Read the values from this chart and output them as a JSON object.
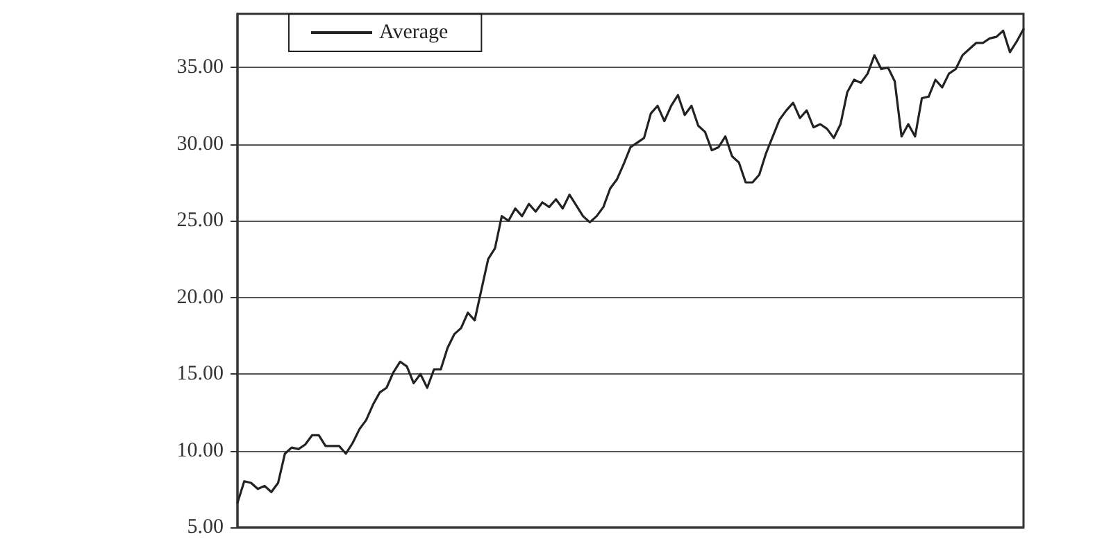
{
  "chart_data": {
    "type": "line",
    "categories": [
      null,
      null,
      null,
      null,
      null,
      null,
      null,
      null,
      null,
      null,
      null,
      null,
      null,
      null,
      null,
      null,
      null,
      null,
      null,
      null,
      null,
      null,
      null,
      null,
      null,
      null,
      null,
      null,
      null,
      null,
      null,
      null,
      null,
      null,
      null,
      null,
      null,
      null,
      null,
      null,
      null,
      null,
      null,
      null,
      null,
      null,
      null,
      null,
      null,
      null,
      null,
      null,
      null,
      null,
      null,
      null,
      null,
      null,
      null,
      null,
      null,
      null,
      null,
      null,
      null,
      null,
      null,
      null,
      null,
      null,
      null,
      null,
      null,
      null,
      null,
      null,
      null,
      null,
      null,
      null,
      null,
      null,
      null,
      null,
      null,
      null,
      null,
      null,
      null,
      null,
      null,
      null,
      null,
      null,
      null,
      null,
      null,
      null,
      null,
      null,
      null,
      null,
      null,
      null,
      null,
      null,
      null,
      null,
      null,
      null,
      null,
      null,
      null,
      null,
      null,
      null,
      null
    ],
    "series": [
      {
        "name": "Average",
        "color": "#222222",
        "values": [
          6.6,
          8.0,
          7.9,
          7.5,
          7.7,
          7.3,
          7.9,
          9.8,
          10.2,
          10.1,
          10.4,
          11.0,
          11.0,
          10.3,
          10.3,
          10.3,
          9.8,
          10.5,
          11.4,
          12.0,
          13.0,
          13.8,
          14.1,
          15.1,
          15.8,
          15.5,
          14.4,
          15.0,
          14.1,
          15.3,
          15.3,
          16.7,
          17.6,
          18.0,
          19.0,
          18.5,
          20.5,
          22.5,
          23.2,
          25.3,
          25.0,
          25.8,
          25.3,
          26.1,
          25.6,
          26.2,
          25.9,
          26.4,
          25.8,
          26.7,
          26.0,
          25.3,
          24.9,
          25.3,
          25.9,
          27.1,
          27.7,
          28.7,
          29.8,
          30.1,
          30.4,
          32.0,
          32.5,
          31.5,
          32.5,
          33.2,
          31.9,
          32.5,
          31.2,
          30.8,
          29.6,
          29.8,
          30.5,
          29.2,
          28.8,
          27.5,
          27.5,
          28.0,
          29.4,
          30.5,
          31.6,
          32.2,
          32.7,
          31.7,
          32.2,
          31.1,
          31.3,
          31.0,
          30.4,
          31.3,
          33.4,
          34.2,
          34.0,
          34.6,
          35.8,
          34.9,
          35.0,
          34.1,
          30.5,
          31.3,
          30.5,
          33.0,
          33.1,
          34.2,
          33.7,
          34.6,
          34.9,
          35.8,
          36.2,
          36.6,
          36.6,
          36.9,
          37.0,
          37.4,
          36.0,
          36.7,
          37.5
        ]
      }
    ],
    "ylim": [
      5,
      38.5
    ],
    "yticks": [
      {
        "value": 5,
        "label": "5.00"
      },
      {
        "value": 10,
        "label": "10.00"
      },
      {
        "value": 15,
        "label": "15.00"
      },
      {
        "value": 20,
        "label": "20.00"
      },
      {
        "value": 25,
        "label": "25.00"
      },
      {
        "value": 30,
        "label": "30.00"
      },
      {
        "value": 35,
        "label": "35.00"
      }
    ],
    "grid": "y",
    "legend": "top left",
    "line_style": "solid",
    "tick_labels": "y"
  }
}
